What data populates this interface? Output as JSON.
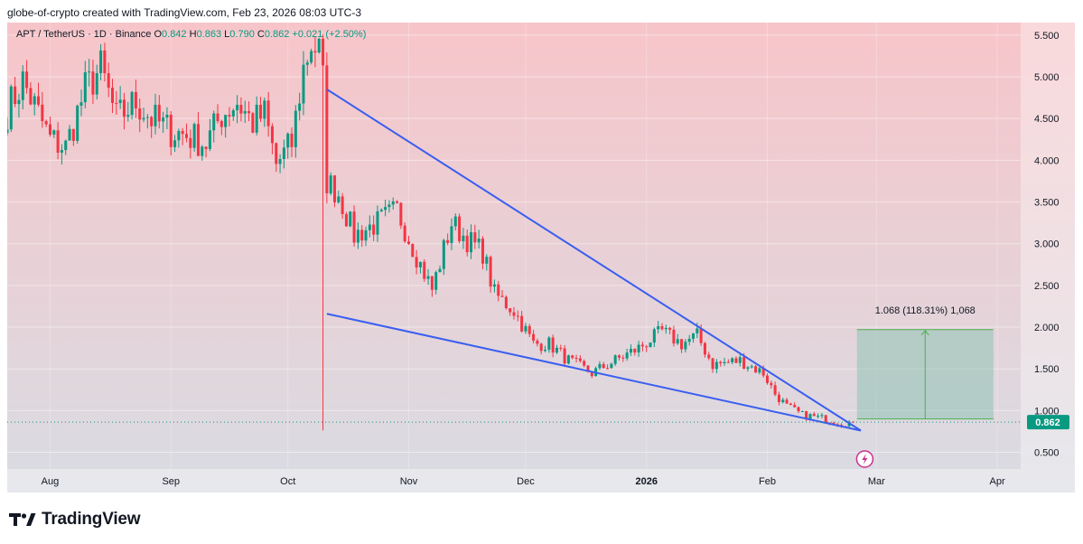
{
  "header": {
    "credit": "globe-of-crypto created with TradingView.com, Feb 23, 2026 08:03 UTC-3"
  },
  "legend": {
    "symbol": "APT / TetherUS · 1D · Binance",
    "open_label": "O",
    "open": "0.842",
    "high_label": "H",
    "high": "0.863",
    "low_label": "L",
    "low": "0.790",
    "close_label": "C",
    "close": "0.862",
    "change": "+0.021 (+2.50%)"
  },
  "footer": {
    "brand": "TradingView"
  },
  "chart_data": {
    "type": "candlestick",
    "title": "APT / TetherUS · 1D · Binance",
    "ylim": [
      0.3,
      5.65
    ],
    "x_range": [
      "2025-07-21",
      "2026-04-07"
    ],
    "y_ticks": [
      "5.500",
      "5.000",
      "4.500",
      "4.000",
      "3.500",
      "3.000",
      "2.500",
      "2.000",
      "1.500",
      "1.000",
      "0.500"
    ],
    "x_ticks": [
      {
        "label": "Aug",
        "date": "2025-08-01",
        "bold": false
      },
      {
        "label": "Sep",
        "date": "2025-09-01",
        "bold": false
      },
      {
        "label": "Oct",
        "date": "2025-10-01",
        "bold": false
      },
      {
        "label": "Nov",
        "date": "2025-11-01",
        "bold": false
      },
      {
        "label": "Dec",
        "date": "2025-12-01",
        "bold": false
      },
      {
        "label": "2026",
        "date": "2026-01-01",
        "bold": true
      },
      {
        "label": "Feb",
        "date": "2026-02-01",
        "bold": false
      },
      {
        "label": "Mar",
        "date": "2026-03-01",
        "bold": false
      },
      {
        "label": "Apr",
        "date": "2026-04-01",
        "bold": false
      }
    ],
    "last_price": "0.862",
    "measure": {
      "label": "1.068 (118.31%) 1,068",
      "from_price": 0.9,
      "to_price": 1.97,
      "start_date": "2026-02-24",
      "end_date": "2026-03-31"
    },
    "trendlines": [
      {
        "name": "upper-wedge-line",
        "from": {
          "date": "2025-10-11",
          "price": 4.85
        },
        "to": {
          "date": "2026-02-25",
          "price": 0.76
        }
      },
      {
        "name": "lower-wedge-line",
        "from": {
          "date": "2025-10-11",
          "price": 2.16
        },
        "to": {
          "date": "2026-02-25",
          "price": 0.76
        }
      }
    ],
    "anchors": [
      [
        "2025-07-21",
        4.6
      ],
      [
        "2025-07-25",
        4.95
      ],
      [
        "2025-08-01",
        4.25
      ],
      [
        "2025-08-05",
        4.15
      ],
      [
        "2025-08-10",
        4.85
      ],
      [
        "2025-08-14",
        5.1
      ],
      [
        "2025-08-18",
        4.5
      ],
      [
        "2025-08-23",
        4.7
      ],
      [
        "2025-08-27",
        4.5
      ],
      [
        "2025-09-01",
        4.35
      ],
      [
        "2025-09-05",
        4.3
      ],
      [
        "2025-09-10",
        4.2
      ],
      [
        "2025-09-14",
        4.55
      ],
      [
        "2025-09-18",
        4.7
      ],
      [
        "2025-09-22",
        4.45
      ],
      [
        "2025-09-25",
        4.55
      ],
      [
        "2025-09-28",
        3.95
      ],
      [
        "2025-10-02",
        4.2
      ],
      [
        "2025-10-05",
        5.1
      ],
      [
        "2025-10-07",
        5.4
      ],
      [
        "2025-10-09",
        5.3
      ],
      [
        "2025-10-10",
        4.95
      ],
      [
        "2025-10-11",
        3.75
      ],
      [
        "2025-10-14",
        3.6
      ],
      [
        "2025-10-18",
        3.1
      ],
      [
        "2025-10-24",
        3.25
      ],
      [
        "2025-10-29",
        3.4
      ],
      [
        "2025-11-04",
        2.75
      ],
      [
        "2025-11-07",
        2.45
      ],
      [
        "2025-11-12",
        3.25
      ],
      [
        "2025-11-16",
        3.05
      ],
      [
        "2025-11-20",
        2.9
      ],
      [
        "2025-11-23",
        2.4
      ],
      [
        "2025-11-28",
        2.2
      ],
      [
        "2025-12-03",
        1.8
      ],
      [
        "2025-12-07",
        1.8
      ],
      [
        "2025-12-12",
        1.6
      ],
      [
        "2025-12-18",
        1.45
      ],
      [
        "2025-12-24",
        1.6
      ],
      [
        "2025-12-30",
        1.75
      ],
      [
        "2026-01-05",
        1.95
      ],
      [
        "2026-01-10",
        1.8
      ],
      [
        "2026-01-14",
        1.9
      ],
      [
        "2026-01-18",
        1.55
      ],
      [
        "2026-01-25",
        1.6
      ],
      [
        "2026-01-31",
        1.45
      ],
      [
        "2026-02-03",
        1.2
      ],
      [
        "2026-02-06",
        1.05
      ],
      [
        "2026-02-10",
        0.95
      ],
      [
        "2026-02-15",
        0.91
      ],
      [
        "2026-02-20",
        0.85
      ],
      [
        "2026-02-23",
        0.862
      ]
    ]
  }
}
